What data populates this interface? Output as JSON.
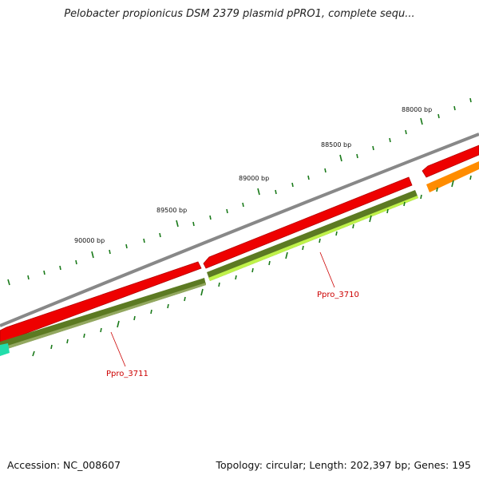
{
  "title": "Pelobacter propionicus DSM 2379 plasmid pPRO1, complete sequ...",
  "accession_text": "Accession: NC_008607",
  "summary_text": "Topology: circular; Length: 202,397 bp; Genes: 195",
  "ruler": {
    "labels": [
      "88000 bp",
      "88500 bp",
      "89000 bp",
      "89500 bp",
      "90000 bp"
    ]
  },
  "genes": [
    {
      "label": "Ppro_3710"
    },
    {
      "label": "Ppro_3711"
    }
  ],
  "colors": {
    "backbone": "#8a8a8a",
    "cds_red": "#ee0000",
    "gene_green_dark": "#5c7a22",
    "gene_green_light": "#bff24a",
    "tick_green": "#1a7a1a",
    "orange": "#ff8c00",
    "teal": "#22ddaa",
    "label_red": "#cc0000"
  }
}
